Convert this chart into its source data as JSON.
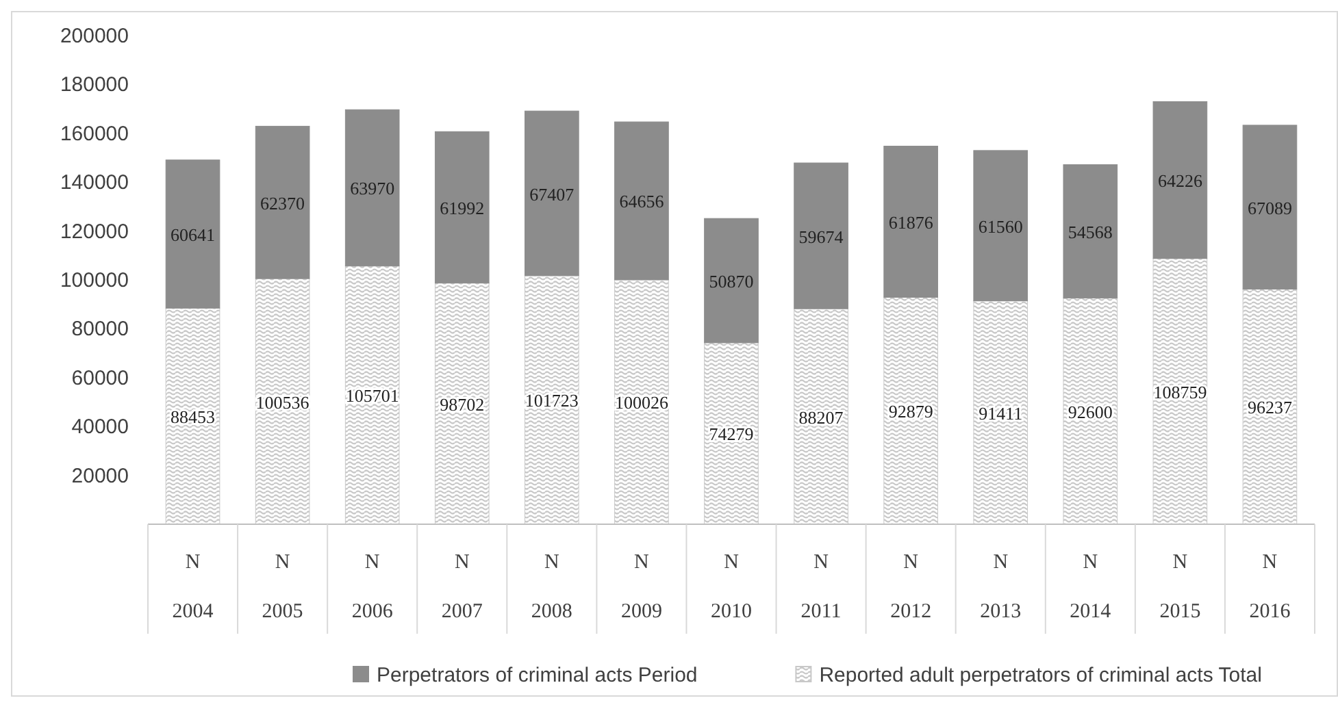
{
  "chart_data": {
    "type": "bar",
    "stacked": true,
    "data_labels": true,
    "legend": "bottom",
    "grid": false,
    "categories": [
      "N\n2004",
      "N\n2005",
      "N\n2006",
      "N\n2007",
      "N\n2008",
      "N\n2009",
      "N\n2010",
      "N\n2011",
      "N\n2012",
      "N\n2013",
      "N\n2014",
      "N\n2015",
      "N\n2016"
    ],
    "series": [
      {
        "name": "Reported adult perpetrators of criminal acts Total",
        "color": "#c8c8c8",
        "values": [
          88453,
          100536,
          105701,
          98702,
          101723,
          100026,
          74279,
          88207,
          92879,
          91411,
          92600,
          108759,
          96237
        ]
      },
      {
        "name": "Perpetrators of criminal acts Period",
        "color": "#8c8c8c",
        "values": [
          60641,
          62370,
          63970,
          61992,
          67407,
          64656,
          50870,
          59674,
          61876,
          61560,
          54568,
          64226,
          67089
        ]
      }
    ],
    "ylim": [
      0,
      200000
    ],
    "yticks": [
      20000,
      40000,
      60000,
      80000,
      100000,
      120000,
      140000,
      160000,
      180000,
      200000
    ]
  }
}
